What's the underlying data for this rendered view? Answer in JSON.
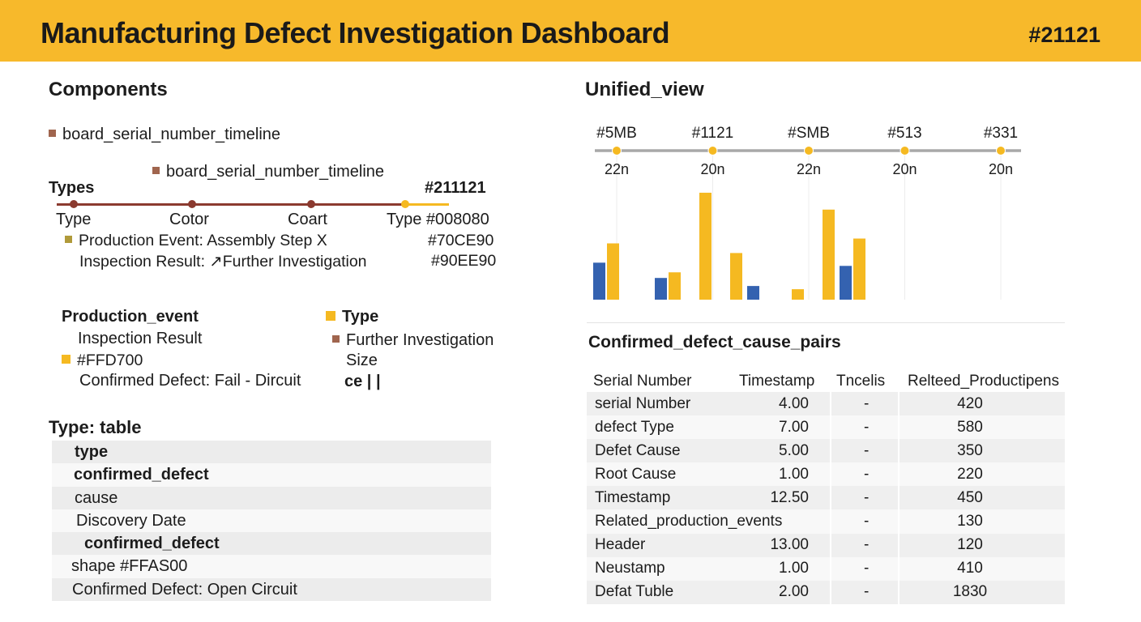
{
  "header": {
    "title": "Manufacturing Defect Investigation Dashboard",
    "id": "#21121"
  },
  "left": {
    "components_title": "Components",
    "components_item": "board_serial_number_timeline",
    "sub_item": "board_serial_number_timeline",
    "types_label": "Types",
    "types_id": "#211121",
    "timeline_labels": [
      "Type",
      "Cotor",
      "Coart",
      "Type #008080"
    ],
    "legend_lines": [
      {
        "text": "Production Event: Assembly Step X",
        "value": "#70CE90"
      },
      {
        "text": "Inspection Result: ↗Further Investigation",
        "value": "#90EE90"
      }
    ],
    "production_event_label": "Production_event",
    "inspection_result_label": "Inspection Result",
    "color_code": "#FFD700",
    "confirmed_defect_line": "Confirmed Defect: Fail - Dircuit",
    "type_label": "Type",
    "further_investigation_label": "Further Investigation",
    "size_label": "Size",
    "ce_label": "ce | |",
    "type_table_title": "Type: table",
    "type_table_rows": [
      "type",
      "confirmed_defect",
      "cause",
      "Discovery Date",
      "confirmed_defect",
      "shape #FFAS00",
      "Confirmed Defect: Open Circuit"
    ]
  },
  "colors": {
    "accent": "#f7b92b",
    "timeline_brown": "#8b3a2f",
    "bar_yellow": "#f5b921",
    "bar_blue": "#3462b0",
    "legend_brown": "#a0654e",
    "legend_olive": "#b09a3a"
  },
  "right": {
    "unified_view_title": "Unified_view",
    "confirmed_pairs_title": "Confirmed_defect_cause_pairs",
    "table_headers": [
      "Serial Number",
      "Timestamp",
      "Tncelis",
      "Relteed_Productipens"
    ],
    "table_rows": [
      [
        "serial Number",
        "4.00",
        "-",
        "420"
      ],
      [
        "defect Type",
        "7.00",
        "-",
        "580"
      ],
      [
        "Defet Cause",
        "5.00",
        "-",
        "350"
      ],
      [
        "Root Cause",
        "1.00",
        "-",
        "220"
      ],
      [
        "Timestamp",
        "12.50",
        "-",
        "450"
      ],
      [
        "Related_production_events",
        "",
        "-",
        "130"
      ],
      [
        "Header",
        "13.00",
        "-",
        "120"
      ],
      [
        "Neustamp",
        "1.00",
        "-",
        "410"
      ],
      [
        "Defat Tuble",
        "2.00",
        "-",
        "1830"
      ]
    ]
  },
  "chart_data": {
    "type": "bar",
    "timeline_points": [
      {
        "label": "#5MB",
        "sub": "22n"
      },
      {
        "label": "#1121",
        "sub": "20n"
      },
      {
        "label": "#SMB",
        "sub": "22n"
      },
      {
        "label": "#513",
        "sub": "20n"
      },
      {
        "label": "#331",
        "sub": "20n"
      }
    ],
    "series": [
      {
        "color": "blue",
        "values": [
          46,
          null,
          27,
          null,
          null,
          17,
          null,
          null,
          42
        ]
      },
      {
        "color": "yellow",
        "values": [
          70,
          null,
          34,
          133,
          58,
          null,
          13,
          112,
          76
        ]
      }
    ],
    "ylim": [
      0,
      140
    ],
    "grid": true
  }
}
